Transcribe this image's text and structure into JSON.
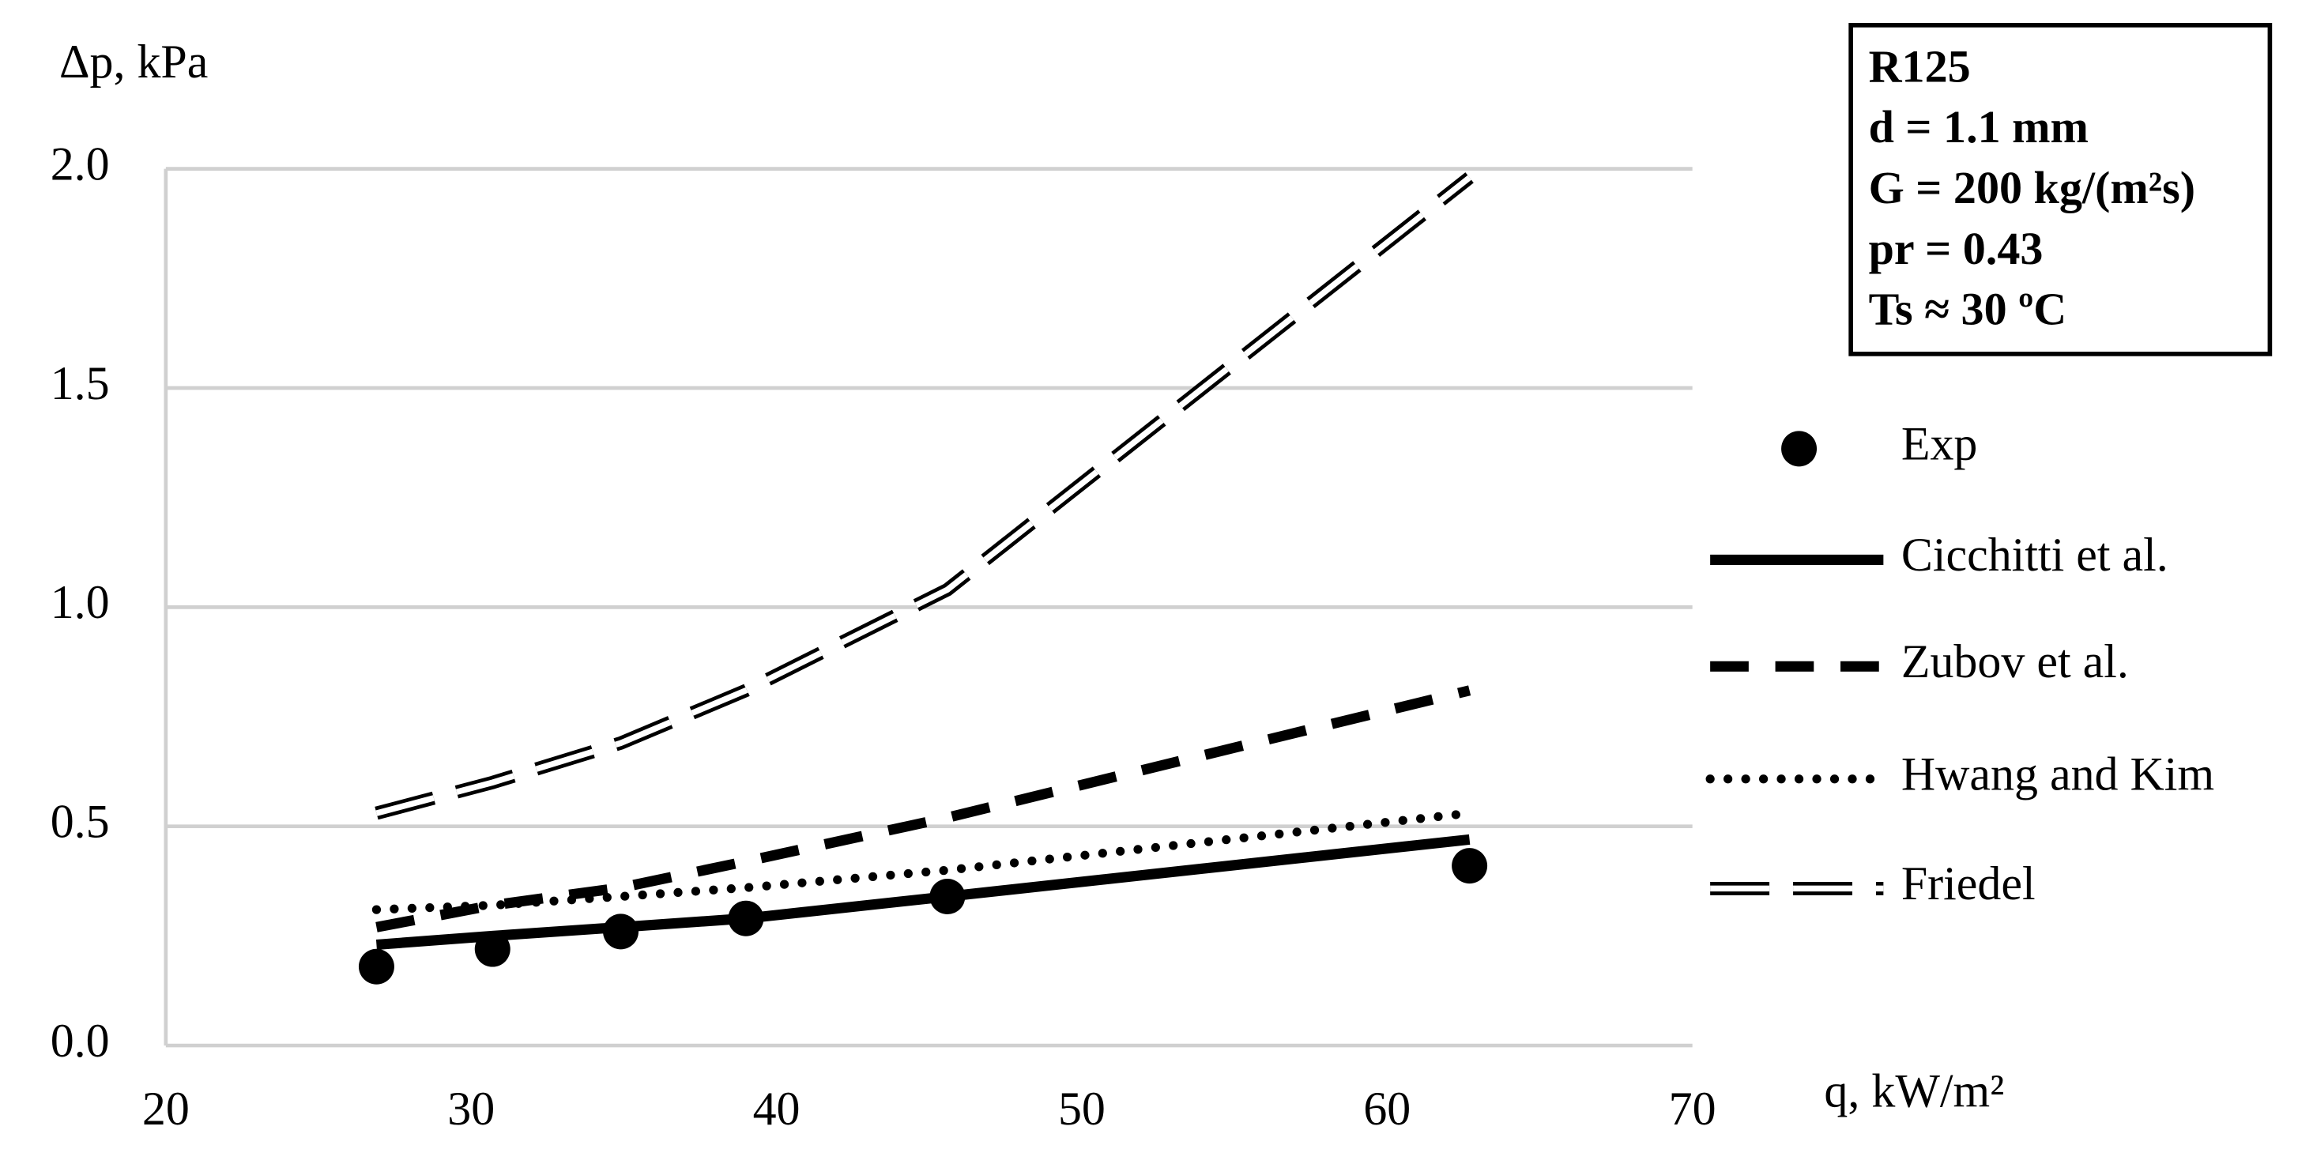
{
  "chart_data": {
    "type": "line",
    "x_label": "q, kW/m²",
    "y_label": "Δp, kPa",
    "annotations": [
      "R125",
      "d = 1.1 mm",
      "G = 200 kg/(m²s)",
      "pr = 0.43",
      "Ts ≈ 30 ºC"
    ],
    "x": [
      26.9,
      30.7,
      34.9,
      39.0,
      45.6,
      62.7
    ],
    "xlim": [
      20,
      70
    ],
    "xticks": [
      20,
      30,
      40,
      50,
      60,
      70
    ],
    "ylim": [
      0,
      2
    ],
    "yticks": [
      {
        "value": 0,
        "label": "0.0"
      },
      0.5,
      {
        "value": 1,
        "label": "1.0"
      },
      1.5,
      {
        "value": 2,
        "label": "2.0"
      }
    ],
    "grid": true,
    "legend": "right",
    "series": [
      {
        "name": "Exp",
        "color": "#000000",
        "style": "markers",
        "values": [
          0.18,
          0.22,
          0.26,
          0.29,
          0.34,
          0.41
        ]
      },
      {
        "name": "Cicchitti et al.",
        "color": "#000000",
        "style": "solid",
        "values": [
          0.23,
          0.25,
          0.27,
          0.29,
          0.34,
          0.47
        ]
      },
      {
        "name": "Zubov et al.",
        "color": "#000000",
        "style": "dashed",
        "values": [
          0.27,
          0.32,
          0.36,
          0.42,
          0.52,
          0.81
        ]
      },
      {
        "name": "Hwang and Kim",
        "color": "#000000",
        "style": "dotted",
        "values": [
          0.31,
          0.32,
          0.34,
          0.36,
          0.4,
          0.53
        ]
      },
      {
        "name": "Friedel",
        "color": "#000000",
        "style": "double",
        "values": [
          0.53,
          0.6,
          0.69,
          0.81,
          1.04,
          1.98
        ]
      }
    ]
  }
}
